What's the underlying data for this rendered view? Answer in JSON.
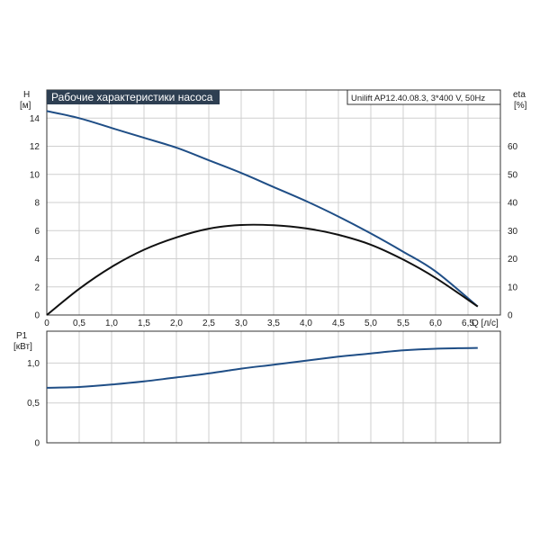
{
  "chart_data": [
    {
      "type": "line",
      "title": "Рабочие характеристики насоса",
      "model_label": "Unilift AP12.40.08.3, 3*400 V, 50Hz",
      "ylabel_name": "H",
      "ylabel_unit": "[м]",
      "y2label_name": "eta",
      "y2label_unit": "[%]",
      "xlabel": "Q [л/с]",
      "xlim": [
        0,
        7
      ],
      "ylim": [
        0,
        16
      ],
      "y2lim": [
        0,
        80
      ],
      "x_ticks": [
        "0",
        "0,5",
        "1,0",
        "1,5",
        "2,0",
        "2,5",
        "3,0",
        "3,5",
        "4,0",
        "4,5",
        "5,0",
        "5,5",
        "6,0",
        "6,5"
      ],
      "y_ticks": [
        "0",
        "2",
        "4",
        "6",
        "8",
        "10",
        "12",
        "14"
      ],
      "y2_ticks": [
        "0",
        "10",
        "20",
        "30",
        "40",
        "50",
        "60"
      ],
      "grid": true,
      "series": [
        {
          "name": "H",
          "axis": "left",
          "color": "#1f4e86",
          "x": [
            0,
            0.5,
            1.0,
            1.5,
            2.0,
            2.5,
            3.0,
            3.5,
            4.0,
            4.5,
            5.0,
            5.5,
            6.0,
            6.65
          ],
          "y": [
            14.5,
            14.0,
            13.3,
            12.6,
            11.9,
            11.0,
            10.1,
            9.1,
            8.1,
            7.0,
            5.8,
            4.5,
            3.1,
            0.6
          ]
        },
        {
          "name": "eta",
          "axis": "right",
          "color": "#111111",
          "x": [
            0,
            0.5,
            1.0,
            1.5,
            2.0,
            2.5,
            3.0,
            3.5,
            4.0,
            4.5,
            5.0,
            5.5,
            6.0,
            6.65
          ],
          "y": [
            0,
            9.3,
            17.1,
            23.2,
            27.6,
            30.7,
            32.0,
            31.9,
            30.8,
            28.5,
            25.0,
            19.7,
            13.2,
            3.0
          ]
        }
      ]
    },
    {
      "type": "line",
      "ylabel_name": "P1",
      "ylabel_unit": "[кВт]",
      "xlim": [
        0,
        7
      ],
      "ylim": [
        0,
        1.4
      ],
      "y_ticks": [
        "0",
        "0,5",
        "1,0"
      ],
      "grid": true,
      "series": [
        {
          "name": "P1",
          "color": "#1f4e86",
          "x": [
            0,
            0.5,
            1.0,
            1.5,
            2.0,
            2.5,
            3.0,
            3.5,
            4.0,
            4.5,
            5.0,
            5.5,
            6.0,
            6.65
          ],
          "y": [
            0.69,
            0.7,
            0.73,
            0.77,
            0.82,
            0.87,
            0.93,
            0.98,
            1.03,
            1.08,
            1.12,
            1.16,
            1.18,
            1.19
          ]
        }
      ]
    }
  ]
}
